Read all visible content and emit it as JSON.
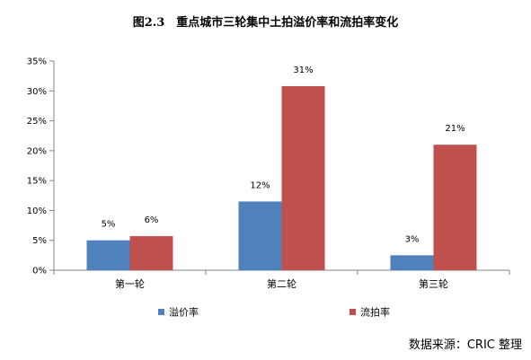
{
  "title": "图2.3　重点城市三轮集中土拍溢价率和流拍率变化",
  "source": "数据来源：CRIC 整理",
  "chart_data": {
    "type": "bar",
    "categories": [
      "第一轮",
      "第二轮",
      "第三轮"
    ],
    "series": [
      {
        "name": "溢价率",
        "values": [
          5,
          11.5,
          2.5
        ],
        "labels": [
          "5%",
          "12%",
          "3%"
        ],
        "color": "#4f81bd"
      },
      {
        "name": "流拍率",
        "values": [
          5.7,
          30.8,
          21
        ],
        "labels": [
          "6%",
          "31%",
          "21%"
        ],
        "color": "#c0504d"
      }
    ],
    "yticks": [
      "0%",
      "5%",
      "10%",
      "15%",
      "20%",
      "25%",
      "30%",
      "35%"
    ],
    "ylim": [
      0,
      35
    ],
    "grid": false,
    "legend": "bottom"
  }
}
